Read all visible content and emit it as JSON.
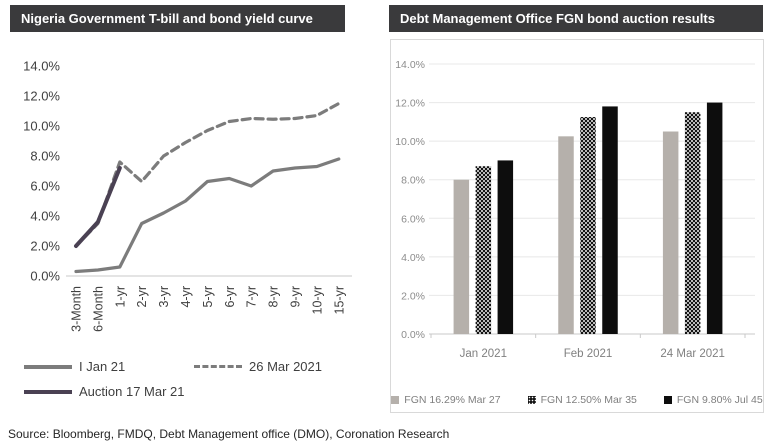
{
  "chart_data": [
    {
      "type": "line",
      "title": "Nigeria Government T-bill and bond yield curve",
      "categories": [
        "3-Month",
        "6-Month",
        "1-yr",
        "2-yr",
        "3-yr",
        "4-yr",
        "5-yr",
        "6-yr",
        "7-yr",
        "8-yr",
        "9-yr",
        "10-yr",
        "15-yr"
      ],
      "yticks": [
        "0.0%",
        "2.0%",
        "4.0%",
        "6.0%",
        "8.0%",
        "10.0%",
        "12.0%",
        "14.0%"
      ],
      "ylim": [
        0,
        14
      ],
      "grid": false,
      "legend_position": "bottom-left",
      "series": [
        {
          "name": "I Jan 21",
          "style": "solid",
          "color": "#7c7c7c",
          "values": [
            0.3,
            0.4,
            0.6,
            3.5,
            4.2,
            5.0,
            6.3,
            6.5,
            6.0,
            7.0,
            7.2,
            7.3,
            7.8
          ]
        },
        {
          "name": "26 Mar 2021",
          "style": "dashed",
          "color": "#7c7c7c",
          "values": [
            2.0,
            3.5,
            7.6,
            6.3,
            8.0,
            8.9,
            9.7,
            10.3,
            10.5,
            10.45,
            10.5,
            10.7,
            11.5
          ]
        },
        {
          "name": "Auction 17 Mar 21",
          "style": "solid",
          "color": "#4a4153",
          "values": [
            2.0,
            3.6,
            7.2
          ]
        }
      ]
    },
    {
      "type": "bar",
      "title": "Debt Management Office FGN bond auction results",
      "categories": [
        "Jan 2021",
        "Feb 2021",
        "24 Mar 2021"
      ],
      "yticks": [
        "0.0%",
        "2.0%",
        "4.0%",
        "6.0%",
        "8.0%",
        "10.0%",
        "12.0%",
        "14.0%"
      ],
      "ylim": [
        0,
        14
      ],
      "grid": true,
      "legend_position": "bottom",
      "series": [
        {
          "name": "FGN 16.29% Mar 27",
          "fill": "solid",
          "color": "#b5b0ab",
          "values": [
            8.0,
            10.25,
            10.5
          ]
        },
        {
          "name": "FGN 12.50% Mar 35",
          "fill": "dots",
          "color": "#141414",
          "values": [
            8.7,
            11.25,
            11.5
          ]
        },
        {
          "name": "FGN 9.80% Jul 45",
          "fill": "solid",
          "color": "#0d0d0d",
          "values": [
            9.0,
            11.8,
            12.0
          ]
        }
      ]
    }
  ],
  "source_note": "Source: Bloomberg, FMDQ, Debt Management office (DMO), Coronation Research",
  "colors": {
    "title_bar_bg": "#3a3a3c",
    "title_text": "#ffffff",
    "axis_line": "#c9c9c9",
    "gridline": "#e8e8e8",
    "left_tick_text": "#404040",
    "right_tick_text": "#8c8c8c"
  }
}
